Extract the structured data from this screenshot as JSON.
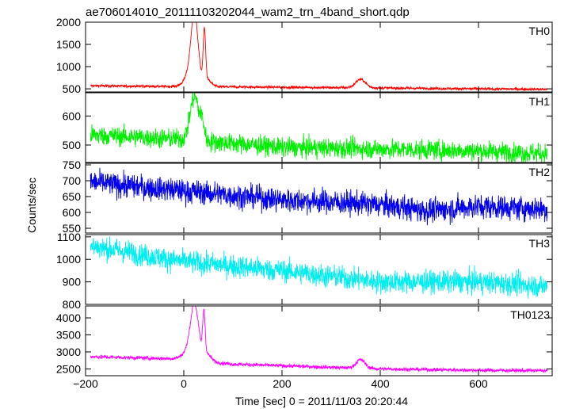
{
  "title": "ae706014010_20111103202044_wam2_trn_4band_short.qdp",
  "chart_data": {
    "type": "line",
    "title": "ae706014010_20111103202044_wam2_trn_4band_short.qdp",
    "xlabel": "Time [sec] 0 = 2011/11/03 20:20:44",
    "ylabel": "Counts/sec",
    "xlim": [
      -200,
      750
    ],
    "x_ticks": [
      -200,
      0,
      200,
      400,
      600
    ],
    "x_tick_labels": [
      "−200",
      "0",
      "200",
      "400",
      "600"
    ],
    "x_range": [
      -190,
      740
    ],
    "grid": false,
    "panels": [
      {
        "name": "TH0",
        "color": "#ff0000",
        "ylim": [
          430,
          2000
        ],
        "y_ticks": [
          500,
          1000,
          1500,
          2000
        ],
        "baseline": [
          [
            -190,
            570
          ],
          [
            -100,
            560
          ],
          [
            0,
            550
          ],
          [
            150,
            540
          ],
          [
            400,
            520
          ],
          [
            600,
            500
          ],
          [
            740,
            490
          ]
        ],
        "noise_amplitude": 25,
        "features": [
          {
            "type": "peak",
            "center": 22,
            "amplitude": 1350,
            "width": 7
          },
          {
            "type": "peak",
            "center": 16,
            "amplitude": 350,
            "width": 12
          },
          {
            "type": "peak",
            "center": 42,
            "amplitude": 1150,
            "width": 2.5
          },
          {
            "type": "peak",
            "center": 48,
            "amplitude": 150,
            "width": 8
          },
          {
            "type": "peak",
            "center": 360,
            "amplitude": 190,
            "width": 10
          }
        ]
      },
      {
        "name": "TH1",
        "color": "#00ee00",
        "ylim": [
          440,
          680
        ],
        "y_ticks": [
          500,
          600
        ],
        "baseline": [
          [
            -190,
            535
          ],
          [
            0,
            520
          ],
          [
            200,
            492
          ],
          [
            400,
            487
          ],
          [
            600,
            480
          ],
          [
            740,
            470
          ]
        ],
        "noise_amplitude": 28,
        "features": [
          {
            "type": "peak",
            "center": 22,
            "amplitude": 150,
            "width": 9
          },
          {
            "type": "peak",
            "center": 38,
            "amplitude": 50,
            "width": 4
          }
        ]
      },
      {
        "name": "TH2",
        "color": "#0000ee",
        "ylim": [
          535,
          755
        ],
        "y_ticks": [
          550,
          600,
          650,
          700,
          750
        ],
        "baseline": [
          [
            -190,
            695
          ],
          [
            0,
            668
          ],
          [
            200,
            640
          ],
          [
            400,
            625
          ],
          [
            500,
            605
          ],
          [
            600,
            620
          ],
          [
            740,
            610
          ]
        ],
        "noise_amplitude": 32,
        "features": []
      },
      {
        "name": "TH3",
        "color": "#00eeee",
        "ylim": [
          800,
          1110
        ],
        "y_ticks": [
          800,
          900,
          1000,
          1100
        ],
        "baseline": [
          [
            -190,
            1060
          ],
          [
            0,
            990
          ],
          [
            200,
            950
          ],
          [
            400,
            900
          ],
          [
            600,
            900
          ],
          [
            740,
            880
          ]
        ],
        "noise_amplitude": 42,
        "features": []
      },
      {
        "name": "TH0123",
        "color": "#ff00ff",
        "ylim": [
          2300,
          4350
        ],
        "y_ticks": [
          2500,
          3000,
          3500,
          4000
        ],
        "baseline": [
          [
            -190,
            2860
          ],
          [
            0,
            2790
          ],
          [
            100,
            2640
          ],
          [
            400,
            2500
          ],
          [
            600,
            2460
          ],
          [
            740,
            2450
          ]
        ],
        "noise_amplitude": 45,
        "features": [
          {
            "type": "peak",
            "center": 22,
            "amplitude": 1400,
            "width": 8
          },
          {
            "type": "peak",
            "center": 15,
            "amplitude": 300,
            "width": 14
          },
          {
            "type": "peak",
            "center": 41,
            "amplitude": 1250,
            "width": 2.5
          },
          {
            "type": "peak",
            "center": 48,
            "amplitude": 200,
            "width": 8
          },
          {
            "type": "peak",
            "center": 360,
            "amplitude": 250,
            "width": 9
          }
        ]
      }
    ]
  }
}
